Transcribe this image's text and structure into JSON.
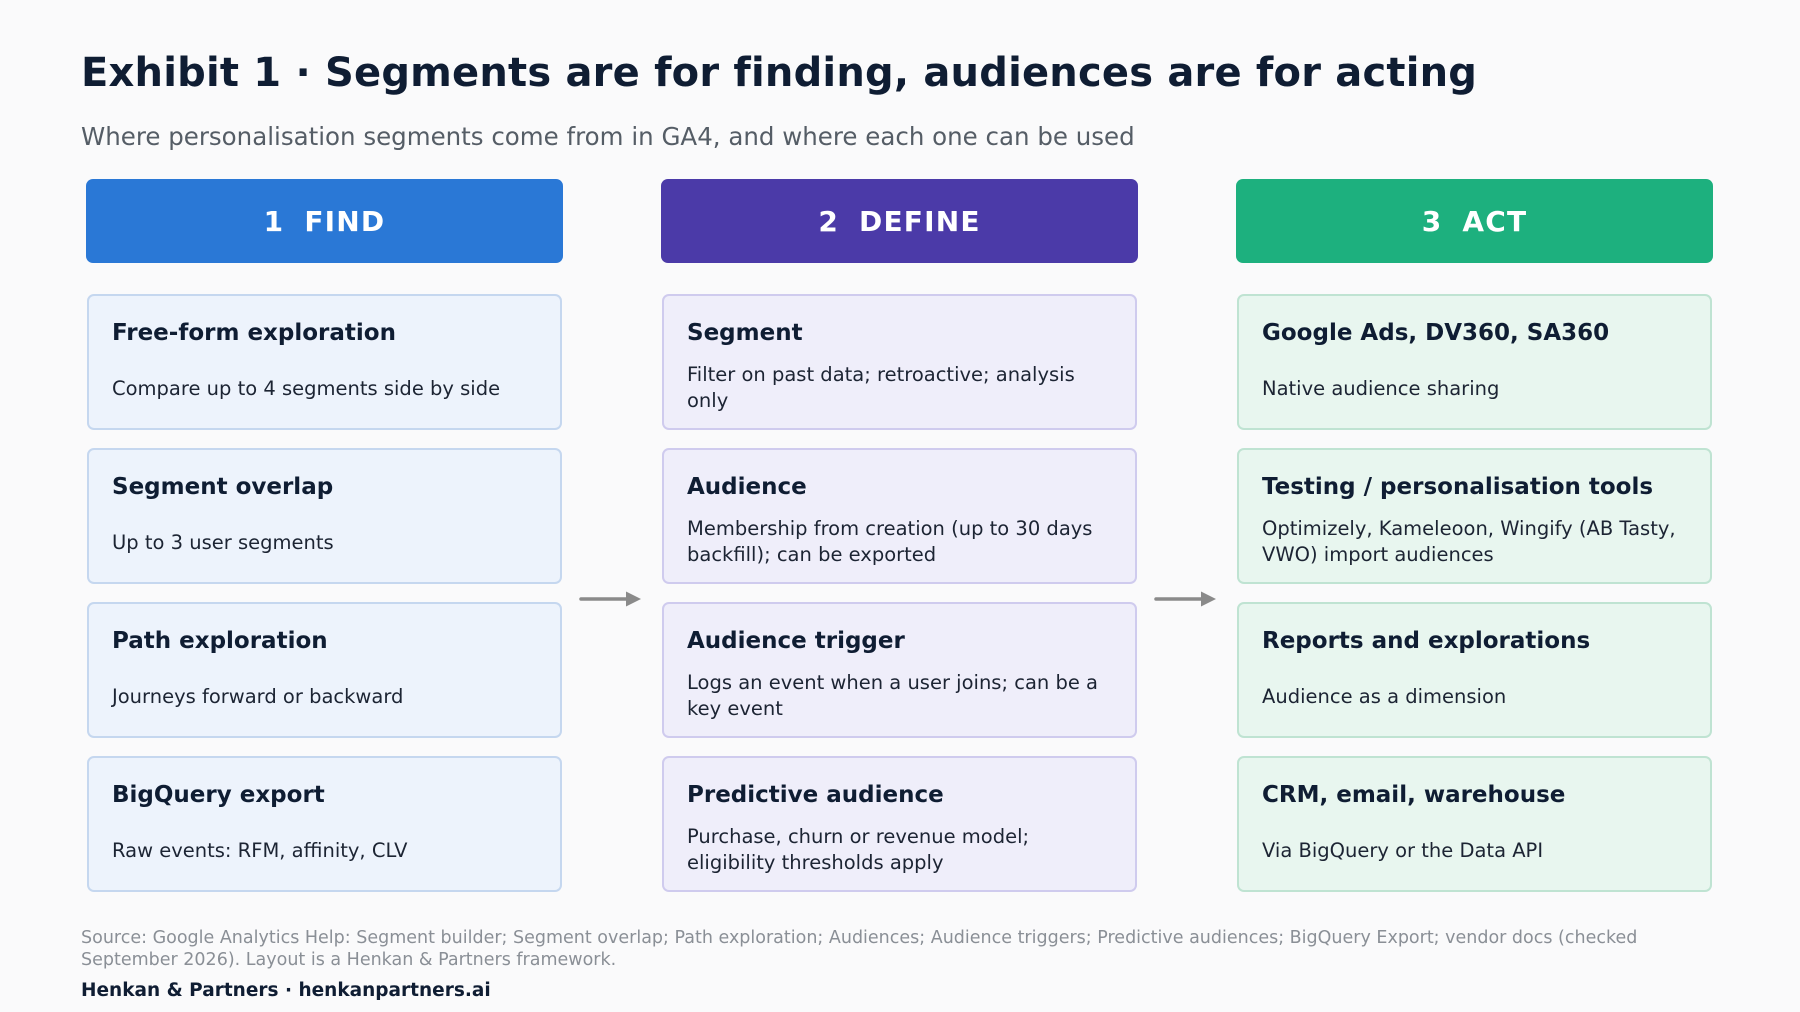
{
  "title": "Exhibit 1 · Segments are for finding, audiences are for acting",
  "subtitle": "Where personalisation segments come from in GA4, and where each one can be used",
  "colors": {
    "find": "#2a78d6",
    "define": "#4b3aa8",
    "act": "#1db07e",
    "arrow": "#8a8a8a"
  },
  "columns": [
    {
      "number": "1",
      "label": "FIND",
      "cards": [
        {
          "title": "Free-form exploration",
          "body": "Compare up to 4 segments side by side"
        },
        {
          "title": "Segment overlap",
          "body": "Up to 3 user segments"
        },
        {
          "title": "Path exploration",
          "body": "Journeys forward or backward"
        },
        {
          "title": "BigQuery export",
          "body": "Raw events: RFM, affinity, CLV"
        }
      ]
    },
    {
      "number": "2",
      "label": "DEFINE",
      "cards": [
        {
          "title": "Segment",
          "body": "Filter on past data; retroactive; analysis only"
        },
        {
          "title": "Audience",
          "body": "Membership from creation (up to 30 days backfill); can be exported"
        },
        {
          "title": "Audience trigger",
          "body": "Logs an event when a user joins; can be a key event"
        },
        {
          "title": "Predictive audience",
          "body": "Purchase, churn or revenue model; eligibility thresholds apply"
        }
      ]
    },
    {
      "number": "3",
      "label": "ACT",
      "cards": [
        {
          "title": "Google Ads, DV360, SA360",
          "body": "Native audience sharing"
        },
        {
          "title": "Testing / personalisation tools",
          "body": "Optimizely, Kameleoon, Wingify (AB Tasty, VWO) import audiences"
        },
        {
          "title": "Reports and explorations",
          "body": "Audience as a dimension"
        },
        {
          "title": "CRM, email, warehouse",
          "body": "Via BigQuery or the Data API"
        }
      ]
    }
  ],
  "source": "Source: Google Analytics Help: Segment builder; Segment overlap; Path exploration; Audiences; Audience triggers; Predictive audiences; BigQuery Export; vendor docs (checked September 2026). Layout is a Henkan & Partners framework.",
  "brand": "Henkan & Partners · henkanpartners.ai"
}
